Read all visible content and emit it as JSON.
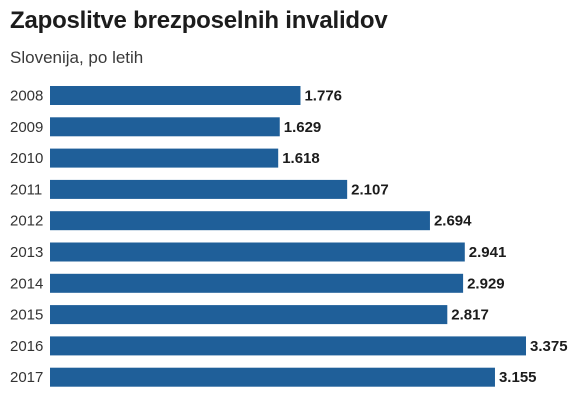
{
  "chart_data": {
    "type": "bar",
    "orientation": "horizontal",
    "title": "Zaposlitve brezposelnih invalidov",
    "subtitle": "Slovenija, po letih",
    "categories": [
      "2008",
      "2009",
      "2010",
      "2011",
      "2012",
      "2013",
      "2014",
      "2015",
      "2016",
      "2017"
    ],
    "values": [
      1776,
      1629,
      1618,
      2107,
      2694,
      2941,
      2929,
      2817,
      3375,
      3155
    ],
    "value_labels": [
      "1.776",
      "1.629",
      "1.618",
      "2.107",
      "2.694",
      "2.941",
      "2.929",
      "2.817",
      "3.375",
      "3.155"
    ],
    "xlim": [
      0,
      3375
    ],
    "grid": false,
    "legend": "none",
    "bar_color": "#1f5f99"
  }
}
